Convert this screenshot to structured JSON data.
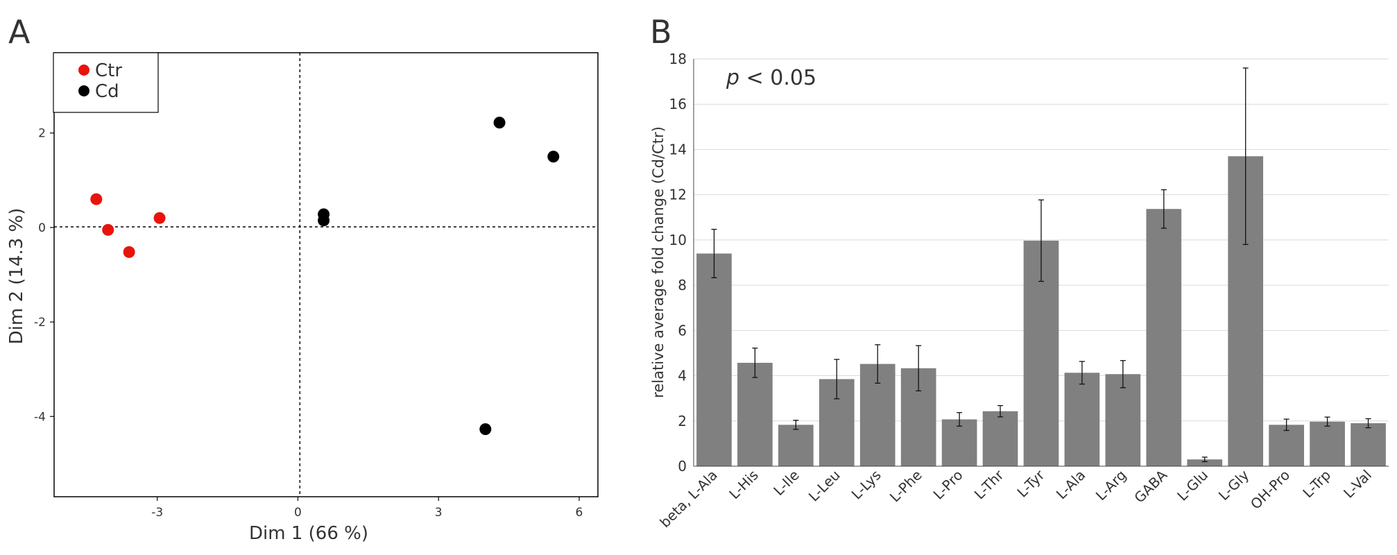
{
  "chart_data": [
    {
      "type": "scatter",
      "panel_label": "A",
      "xlabel": "Dim 1 (66 %)",
      "ylabel": "Dim 2 (14.3 %)",
      "xlim": [
        -5.2,
        6.4
      ],
      "ylim": [
        -5.7,
        3.7
      ],
      "xticks": [
        -3,
        0,
        3,
        6
      ],
      "yticks": [
        2,
        0,
        -2,
        -4
      ],
      "xtick_labels": [
        "-3",
        "0",
        "3",
        "6"
      ],
      "ytick_labels": [
        "2",
        "0",
        "-2",
        "-4"
      ],
      "reference_lines": {
        "x": 0,
        "y": 0
      },
      "legend_position": "top-left",
      "series": [
        {
          "name": "Ctr",
          "color": "#e8140c",
          "points": [
            [
              -4.3,
              0.6
            ],
            [
              -4.05,
              -0.05
            ],
            [
              -3.6,
              -0.52
            ],
            [
              -2.95,
              0.2
            ]
          ]
        },
        {
          "name": "Cd",
          "color": "#000000",
          "points": [
            [
              0.55,
              0.28
            ],
            [
              0.55,
              0.15
            ],
            [
              4.3,
              2.22
            ],
            [
              5.45,
              1.5
            ],
            [
              4.0,
              -4.27
            ]
          ]
        }
      ]
    },
    {
      "type": "bar",
      "panel_label": "B",
      "annotation_italic": "p",
      "annotation_rest": " < 0.05",
      "ylabel": "relative average fold change (Cd/Ctr)",
      "ylim": [
        0,
        18
      ],
      "yticks": [
        0,
        2,
        4,
        6,
        8,
        10,
        12,
        14,
        16,
        18
      ],
      "ytick_labels": [
        "0",
        "2",
        "4",
        "6",
        "8",
        "10",
        "12",
        "14",
        "16",
        "18"
      ],
      "grid": true,
      "bar_color": "#808080",
      "categories": [
        "beta, L-Ala",
        "L-His",
        "L-Ile",
        "L-Leu",
        "L-Lys",
        "L-Phe",
        "L-Pro",
        "L-Thr",
        "L-Tyr",
        "L-Ala",
        "L-Arg",
        "GABA",
        "L-Glu",
        "L-Gly",
        "OH-Pro",
        "L-Trp",
        "L-Val"
      ],
      "values": [
        9.4,
        4.57,
        1.83,
        3.85,
        4.52,
        4.33,
        2.07,
        2.43,
        9.97,
        4.13,
        4.07,
        11.37,
        0.3,
        13.7,
        1.83,
        1.97,
        1.9
      ],
      "errors": [
        1.07,
        0.65,
        0.2,
        0.87,
        0.85,
        1.0,
        0.3,
        0.25,
        1.8,
        0.5,
        0.6,
        0.85,
        0.1,
        3.9,
        0.25,
        0.2,
        0.2
      ]
    }
  ]
}
